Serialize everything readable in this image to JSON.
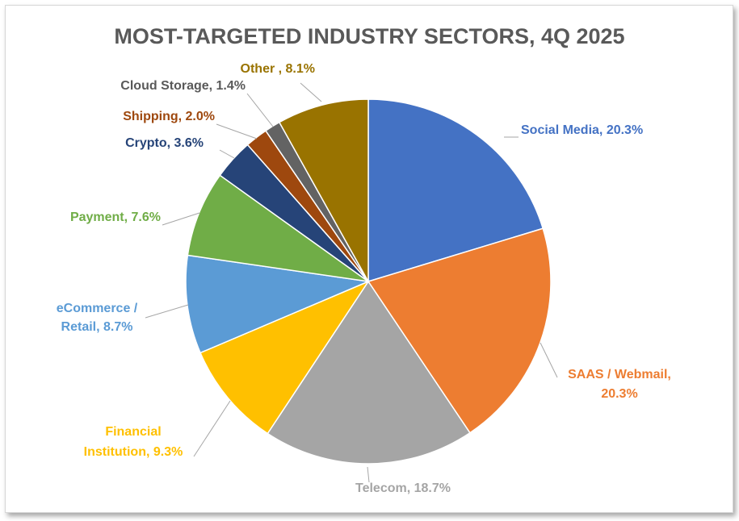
{
  "chart_data": {
    "type": "pie",
    "title": "MOST-TARGETED INDUSTRY SECTORS, 4Q 2025",
    "slices": [
      {
        "name": "Social Media",
        "value": 20.3,
        "color": "#4472C4",
        "label_lines": [
          "Social Media, 20.3%"
        ]
      },
      {
        "name": "SAAS / Webmail",
        "value": 20.3,
        "color": "#ED7D31",
        "label_lines": [
          "SAAS / Webmail,",
          "20.3%"
        ]
      },
      {
        "name": "Telecom",
        "value": 18.7,
        "color": "#A5A5A5",
        "label_lines": [
          "Telecom, 18.7%"
        ]
      },
      {
        "name": "Financial Institution",
        "value": 9.3,
        "color": "#FFC000",
        "label_lines": [
          "Financial",
          "Institution, 9.3%"
        ]
      },
      {
        "name": "eCommerce / Retail",
        "value": 8.7,
        "color": "#5B9BD5",
        "label_lines": [
          "eCommerce /",
          "Retail, 8.7%"
        ]
      },
      {
        "name": "Payment",
        "value": 7.6,
        "color": "#70AD47",
        "label_lines": [
          "Payment, 7.6%"
        ]
      },
      {
        "name": "Crypto",
        "value": 3.6,
        "color": "#264478",
        "label_lines": [
          "Crypto, 3.6%"
        ]
      },
      {
        "name": "Shipping",
        "value": 2.0,
        "color": "#9E480E",
        "label_lines": [
          "Shipping, 2.0%"
        ]
      },
      {
        "name": "Cloud Storage",
        "value": 1.4,
        "color": "#636363",
        "label_lines": [
          "Cloud Storage, 1.4%"
        ]
      },
      {
        "name": "Other",
        "value": 8.1,
        "color": "#997300",
        "label_lines": [
          "Other , 8.1%"
        ]
      }
    ],
    "label_colors": {
      "Telecom": "#A5A5A5",
      "Cloud Storage": "#595959"
    },
    "start_angle_deg": 0,
    "direction": "clockwise"
  }
}
